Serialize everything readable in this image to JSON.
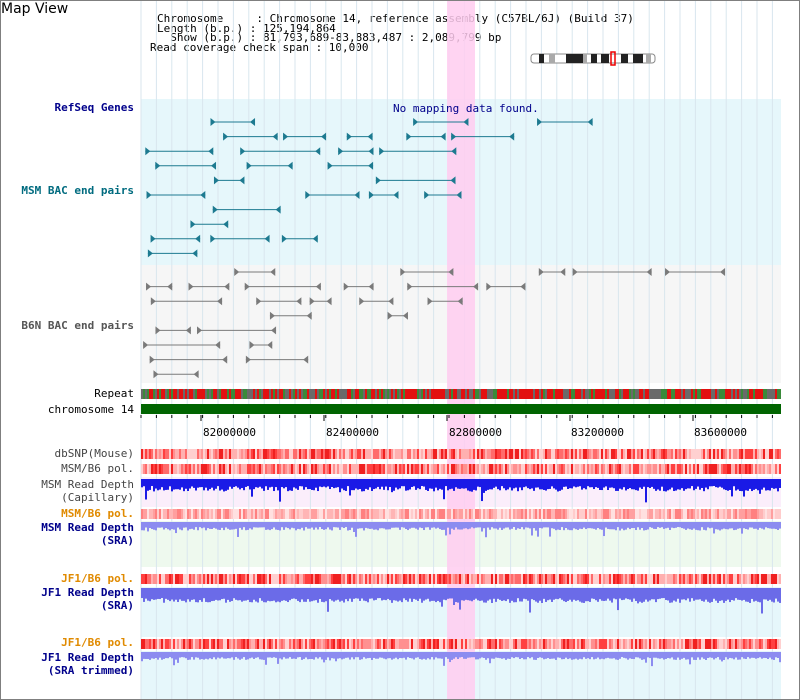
{
  "header": {
    "title": "Map View",
    "info_lines": [
      "Chromosome     : Chromosome 14, reference assembly (C57BL/6J) (Build 37)",
      "Length (b.p.) : 125,194,864",
      "  Show (b.p.) : 81,793,689-83,883,487 : 2,089,799 bp",
      "Read coverage check span : 10,000"
    ]
  },
  "tracks": {
    "refseq": {
      "label": "RefSeq Genes",
      "message": "No mapping data found.",
      "color": "#00008b"
    },
    "msm_bac": {
      "label": "MSM BAC end pairs",
      "color": "#006b7f"
    },
    "b6n_bac": {
      "label": "B6N BAC end pairs",
      "color": "#555555"
    },
    "repeat": {
      "label": "Repeat"
    },
    "chromosome": {
      "label": "chromosome 14",
      "bar_color": "#006400"
    },
    "axis_ticks": [
      "82000000",
      "82400000",
      "82800000",
      "83200000",
      "83600000"
    ],
    "dbsnp": {
      "label": "dbSNP(Mouse)"
    },
    "msm_b6_pol_1": {
      "label": "MSM/B6 pol."
    },
    "msm_depth_cap": {
      "label": "MSM Read Depth",
      "sublabel": "(Capillary)"
    },
    "msm_b6_pol_2": {
      "label": "MSM/B6 pol.",
      "color": "#e08a00"
    },
    "msm_depth_sra": {
      "label": "MSM Read Depth",
      "sublabel": "(SRA)",
      "color": "#00008b"
    },
    "jf1_b6_pol_1": {
      "label": "JF1/B6 pol.",
      "color": "#e08a00"
    },
    "jf1_depth_sra": {
      "label": "JF1 Read Depth",
      "sublabel": "(SRA)",
      "color": "#00008b"
    },
    "jf1_b6_pol_2": {
      "label": "JF1/B6 pol.",
      "color": "#e08a00"
    },
    "jf1_depth_trim": {
      "label": "JF1 Read Depth",
      "sublabel": "(SRA trimmed)",
      "color": "#00008b"
    }
  },
  "colors": {
    "highlight": "#ffccf0",
    "track_bg_cyan": "#e6f7fb",
    "track_bg_green": "#eef9ee",
    "track_bg_pink": "#fbeefb",
    "snp_red": "#ff3b3b",
    "depth_blue": "#1a1ae6",
    "depth_lavender": "#8c8cf0"
  }
}
